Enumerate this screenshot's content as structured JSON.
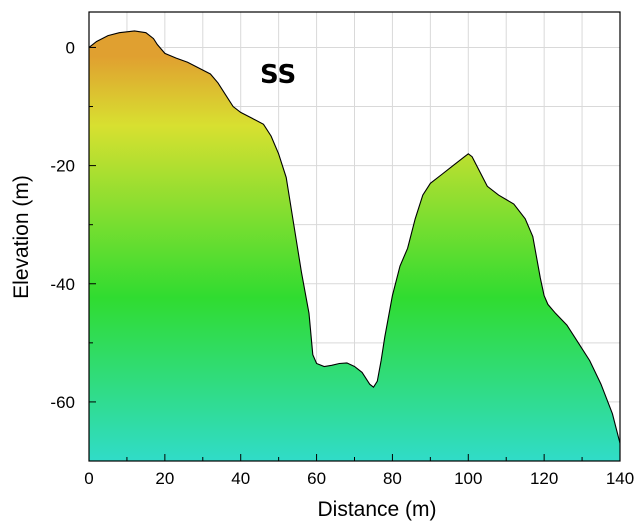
{
  "chart_data": {
    "type": "area",
    "title": "",
    "annotation": "SS",
    "xlabel": "Distance (m)",
    "ylabel": "Elevation (m)",
    "xlim": [
      0,
      140
    ],
    "ylim": [
      -70,
      6
    ],
    "xticks": [
      0,
      20,
      40,
      60,
      80,
      100,
      120,
      140
    ],
    "xtick_labels": [
      "0",
      "20",
      "40",
      "60",
      "80",
      "100",
      "120",
      "140"
    ],
    "yticks": [
      0,
      -20,
      -40,
      -60
    ],
    "ytick_labels": [
      "0",
      "-20",
      "-40",
      "-60"
    ],
    "grid": true,
    "fill_colors": [
      "#e0a030",
      "#d8e030",
      "#30dc30",
      "#30dcc8"
    ],
    "x": [
      0,
      2,
      5,
      8,
      12,
      15,
      17,
      18,
      20,
      23,
      26,
      29,
      32,
      34,
      36,
      38,
      40,
      43,
      46,
      48,
      50,
      52,
      54,
      56,
      58,
      59,
      60,
      62,
      64,
      66,
      68,
      70,
      72,
      74,
      75,
      76,
      77,
      78,
      80,
      82,
      84,
      86,
      88,
      90,
      93,
      96,
      99,
      100,
      101,
      103,
      105,
      108,
      112,
      115,
      117,
      119,
      120,
      121,
      123,
      126,
      129,
      132,
      135,
      138,
      140
    ],
    "y": [
      0,
      1,
      2,
      2.5,
      2.8,
      2.5,
      1.5,
      0.5,
      -1,
      -1.8,
      -2.5,
      -3.5,
      -4.5,
      -6,
      -8,
      -10,
      -11,
      -12,
      -13,
      -15,
      -18,
      -22,
      -30,
      -38,
      -45,
      -52,
      -53.5,
      -54,
      -53.8,
      -53.5,
      -53.4,
      -54,
      -55,
      -57,
      -57.5,
      -56.5,
      -53,
      -49,
      -42,
      -37,
      -34,
      -29,
      -25,
      -23,
      -21.5,
      -20,
      -18.5,
      -18.0,
      -18.5,
      -21,
      -23.5,
      -25,
      -26.5,
      -29,
      -32,
      -39,
      -42,
      -43.5,
      -45,
      -47,
      -50,
      -53,
      -57,
      -62,
      -67
    ]
  }
}
